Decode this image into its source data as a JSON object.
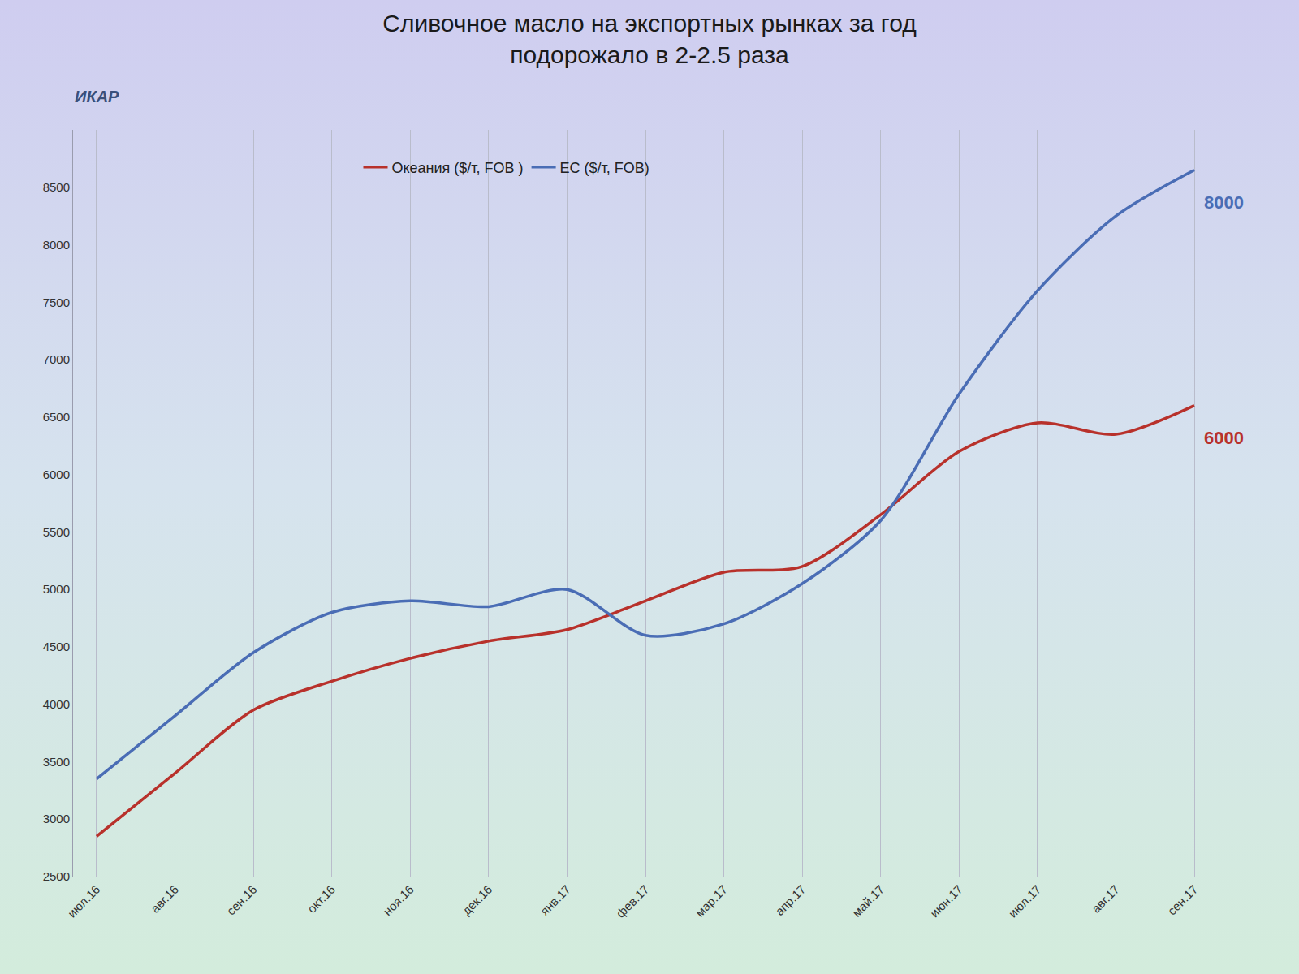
{
  "chart_data": {
    "type": "line",
    "title": "Сливочное масло на экспортных рынках за год\nподорожало в 2-2.5 раза",
    "logo": "ИКАР",
    "categories": [
      "июл.16",
      "авг.16",
      "сен.16",
      "окт.16",
      "ноя.16",
      "дек.16",
      "янв.17",
      "фев.17",
      "мар.17",
      "апр.17",
      "май.17",
      "июн.17",
      "июл.17",
      "авг.17",
      "сен.17"
    ],
    "series": [
      {
        "name": "Океания ($/т, FOB )",
        "color": "#b8312b",
        "values": [
          2850,
          3400,
          3950,
          4200,
          4400,
          4550,
          4650,
          4900,
          5150,
          5200,
          5650,
          6200,
          6450,
          6350,
          6600
        ]
      },
      {
        "name": "ЕС ($/т, FOB)",
        "color": "#4a6db5",
        "values": [
          3350,
          3900,
          4450,
          4800,
          4900,
          4850,
          5000,
          4600,
          4700,
          5050,
          5600,
          6700,
          7600,
          8250,
          8650
        ]
      }
    ],
    "annotations": [
      {
        "text": "8000",
        "series": "ЕС ($/т, FOB)"
      },
      {
        "text": "6000",
        "series": "Океания ($/т, FOB )"
      }
    ],
    "ylim": [
      2500,
      9000
    ],
    "yticks": [
      2500,
      3000,
      3500,
      4000,
      4500,
      5000,
      5500,
      6000,
      6500,
      7000,
      7500,
      8000,
      8500
    ],
    "grid": "x",
    "legend": "top"
  }
}
